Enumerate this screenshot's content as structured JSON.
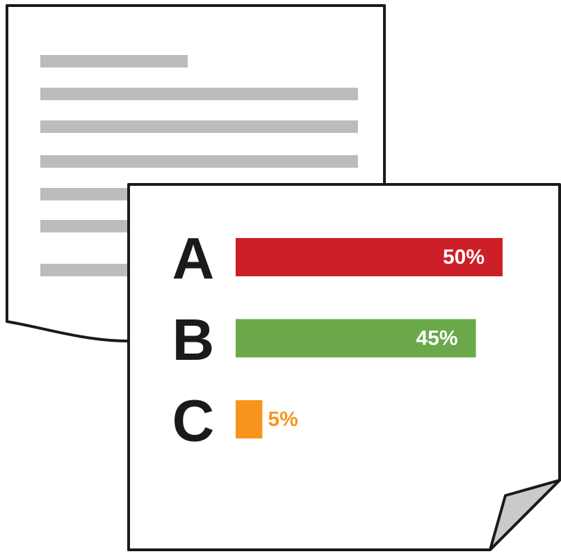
{
  "chart_data": {
    "type": "bar",
    "orientation": "horizontal",
    "categories": [
      "A",
      "B",
      "C"
    ],
    "values": [
      50,
      45,
      5
    ],
    "value_labels": [
      "50%",
      "45%",
      "5%"
    ],
    "colors": [
      "#cc1f27",
      "#6aa84a",
      "#f7941d"
    ]
  }
}
